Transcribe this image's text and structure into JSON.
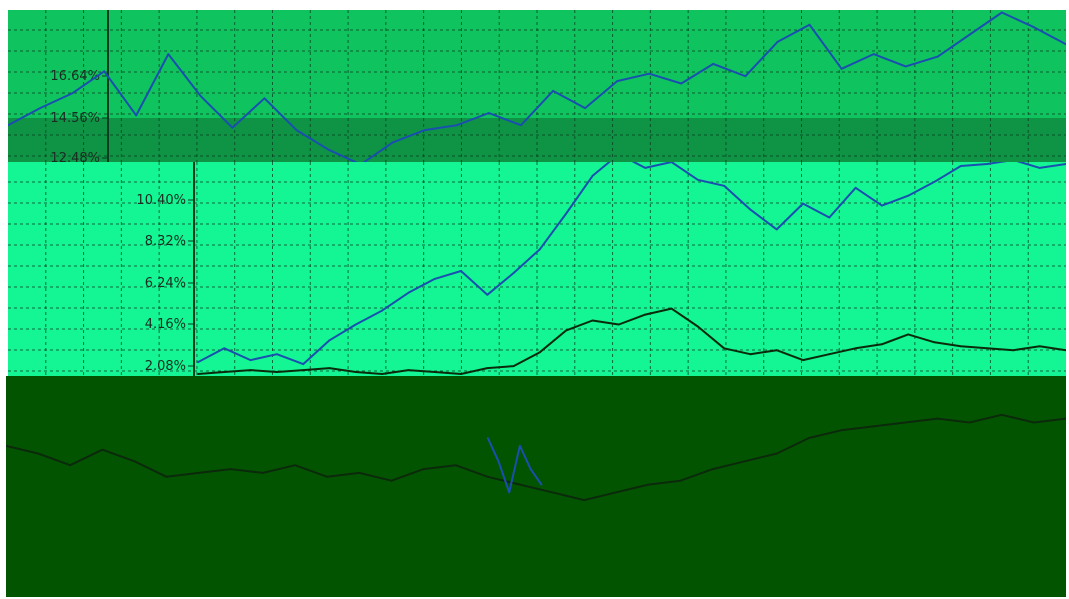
{
  "colors": {
    "panel_a_bg": "#0fc45e",
    "panel_a_band": "#0e9444",
    "panel_b_bg": "#13f693",
    "panel_c_bg": "#035400",
    "grid": "#0a3d20",
    "series_blue": "#1a4fb0",
    "series_dark": "#0b2a0b"
  },
  "chart_data": [
    {
      "type": "line",
      "panel": "upper",
      "yticks": [
        "16.64%",
        "14.56%",
        "12.48%"
      ],
      "yaxis_unit": "%",
      "grid": true,
      "series": [
        {
          "color": "#1a4fb0",
          "x": [
            0,
            3,
            6,
            9,
            12,
            15,
            18,
            21,
            24,
            27,
            30,
            33,
            36,
            39,
            42,
            45,
            48,
            51,
            54,
            57,
            60,
            63,
            66,
            69,
            72,
            75,
            78,
            81,
            84,
            87,
            90,
            93,
            96,
            99
          ],
          "y": [
            12.9,
            13.6,
            14.2,
            15.1,
            13.3,
            15.8,
            14.1,
            12.8,
            14.0,
            12.7,
            11.9,
            11.3,
            12.2,
            12.7,
            12.9,
            13.4,
            12.9,
            14.3,
            13.6,
            14.7,
            15.0,
            14.6,
            15.4,
            14.9,
            16.3,
            17.0,
            15.2,
            15.8,
            15.3,
            15.7,
            16.6,
            17.5,
            16.9,
            16.2
          ]
        }
      ]
    },
    {
      "type": "line",
      "panel": "middle",
      "yticks": [
        "10.40%",
        "8.32%",
        "6.24%",
        "4.16%",
        "2.08%"
      ],
      "yaxis_unit": "%",
      "ylim": [
        0.8,
        11.6
      ],
      "grid": true,
      "series": [
        {
          "color": "#1a4fb0",
          "x": [
            0,
            3,
            6,
            9,
            12,
            15,
            18,
            21,
            24,
            27,
            30,
            33,
            36,
            39,
            42,
            45,
            48,
            51,
            54,
            57,
            60,
            63,
            66,
            69,
            72,
            75,
            78,
            81,
            84,
            87,
            90,
            93,
            96,
            99
          ],
          "y": [
            1.5,
            2.2,
            1.6,
            1.9,
            1.4,
            2.6,
            3.4,
            4.1,
            5.0,
            5.7,
            6.1,
            4.9,
            6.0,
            7.2,
            9.0,
            10.9,
            12.0,
            11.3,
            11.6,
            10.7,
            10.4,
            9.2,
            8.2,
            9.5,
            8.8,
            10.3,
            9.4,
            9.9,
            10.6,
            11.4,
            11.5,
            11.7,
            11.3,
            11.5
          ]
        },
        {
          "color": "#0b2a0b",
          "x": [
            0,
            3,
            6,
            9,
            12,
            15,
            18,
            21,
            24,
            27,
            30,
            33,
            36,
            39,
            42,
            45,
            48,
            51,
            54,
            57,
            60,
            63,
            66,
            69,
            72,
            75,
            78,
            81,
            84,
            87,
            90,
            93,
            96,
            99
          ],
          "y": [
            0.9,
            1.0,
            1.1,
            1.0,
            1.1,
            1.2,
            1.0,
            0.9,
            1.1,
            1.0,
            0.9,
            1.2,
            1.3,
            2.0,
            3.1,
            3.6,
            3.4,
            3.9,
            4.2,
            3.3,
            2.2,
            1.9,
            2.1,
            1.6,
            1.9,
            2.2,
            2.4,
            2.9,
            2.5,
            2.3,
            2.2,
            2.1,
            2.3,
            2.1
          ]
        }
      ]
    },
    {
      "type": "line",
      "panel": "lower",
      "yticks": [],
      "grid": false,
      "series": [
        {
          "color": "#0b2a0b",
          "x": [
            0,
            3,
            6,
            9,
            12,
            15,
            18,
            21,
            24,
            27,
            30,
            33,
            36,
            39,
            42,
            45,
            48,
            51,
            54,
            57,
            60,
            63,
            66,
            69,
            72,
            75,
            78,
            81,
            84,
            87,
            90,
            93,
            96,
            99
          ],
          "y": [
            1.4,
            1.2,
            0.9,
            1.3,
            1.0,
            0.6,
            0.7,
            0.8,
            0.7,
            0.9,
            0.6,
            0.7,
            0.5,
            0.8,
            0.9,
            0.6,
            0.4,
            0.2,
            0.0,
            0.2,
            0.4,
            0.5,
            0.8,
            1.0,
            1.2,
            1.6,
            1.8,
            1.9,
            2.0,
            2.1,
            2.0,
            2.2,
            2.0,
            2.1
          ]
        },
        {
          "color": "#1a4fb0",
          "x": [
            45,
            46,
            47,
            48,
            49,
            50
          ],
          "y": [
            1.6,
            1.0,
            0.2,
            1.4,
            0.8,
            0.4
          ]
        }
      ]
    }
  ]
}
